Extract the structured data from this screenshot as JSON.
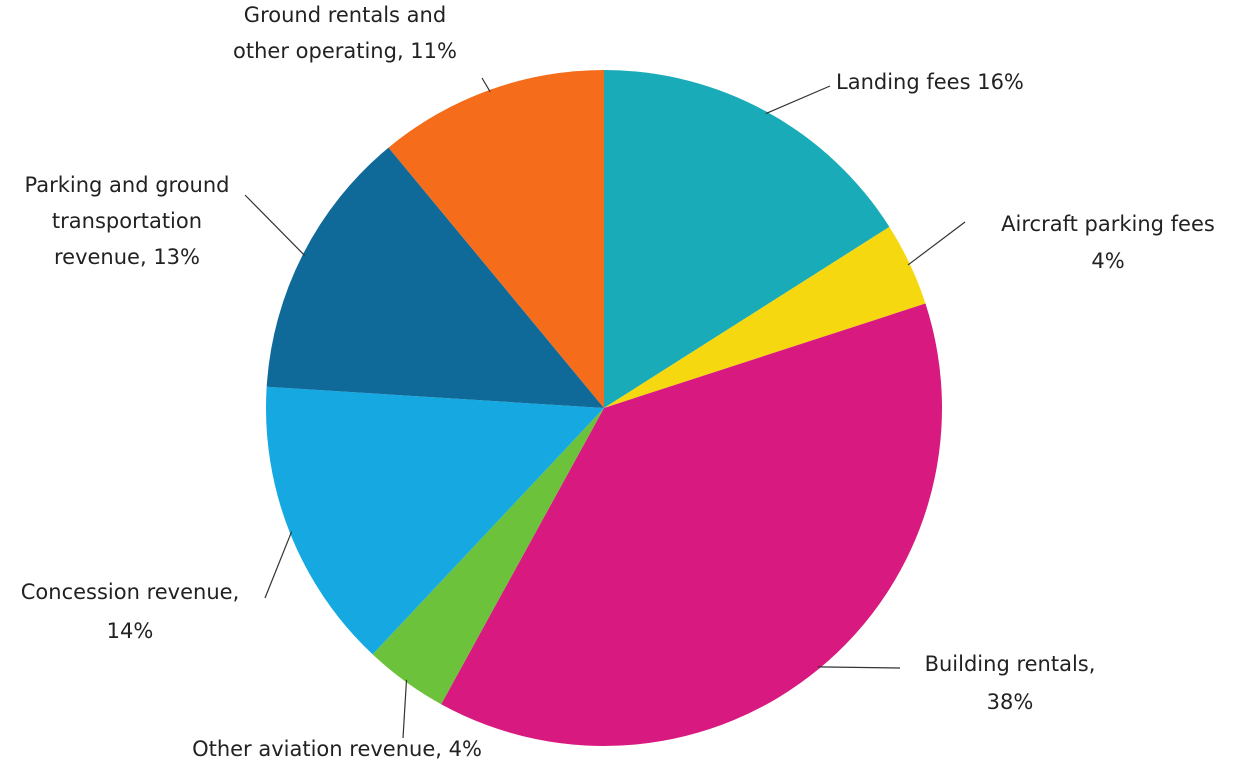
{
  "chart_data": {
    "type": "pie",
    "labels": [
      [
        "Landing fees 16%"
      ],
      [
        "Aircraft parking fees",
        "4%"
      ],
      [
        "Building rentals,",
        "38%"
      ],
      [
        "Other aviation revenue, 4%"
      ],
      [
        "Concession revenue,",
        "14%"
      ],
      [
        "Parking and ground",
        "transportation",
        "revenue, 13%"
      ],
      [
        "Ground rentals and",
        "other operating, 11%"
      ]
    ],
    "values": [
      16,
      4,
      38,
      4,
      14,
      13,
      11
    ],
    "colors": [
      "#1aabb8",
      "#f5d80f",
      "#d8197f",
      "#6cc23a",
      "#16a9e1",
      "#0f6a9a",
      "#f56c1a"
    ]
  }
}
